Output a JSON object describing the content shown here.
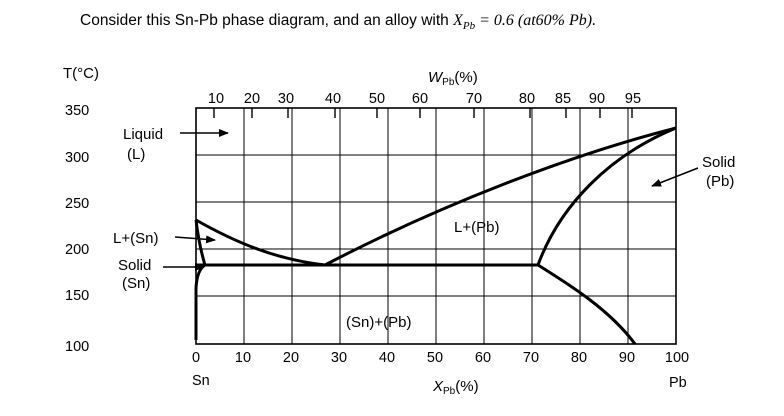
{
  "question": {
    "prefix": "Consider this Sn-Pb phase diagram, and an alloy with ",
    "math_var": "X",
    "math_sub": "Pb",
    "math_rest": " = 0.6 (at60% Pb)."
  },
  "axes": {
    "y_label": "T(°C)",
    "y_ticks": [
      "350",
      "300",
      "250",
      "200",
      "150",
      "100"
    ],
    "x_bottom_ticks": [
      "0",
      "10",
      "20",
      "30",
      "40",
      "50",
      "60",
      "70",
      "80",
      "90",
      "100"
    ],
    "x_bottom_label": "X",
    "x_bottom_label_sub": "Pb",
    "x_bottom_label_suffix": "(%)",
    "x_top_label": "W",
    "x_top_label_sub": "Pb",
    "x_top_label_suffix": "(%)",
    "x_top_ticks": [
      "10",
      "20",
      "30",
      "40",
      "50",
      "60",
      "70",
      "80",
      "85",
      "90",
      "95"
    ],
    "left_element": "Sn",
    "right_element": "Pb"
  },
  "regions": {
    "liquid": "Liquid",
    "liquid_sym": "(L)",
    "l_sn": "L+(Sn)",
    "solid_sn": "Solid",
    "solid_sn_sym": "(Sn)",
    "l_pb": "L+(Pb)",
    "sn_pb": "(Sn)+(Pb)",
    "solid_pb": "Solid",
    "solid_pb_sym": "(Pb)"
  }
}
